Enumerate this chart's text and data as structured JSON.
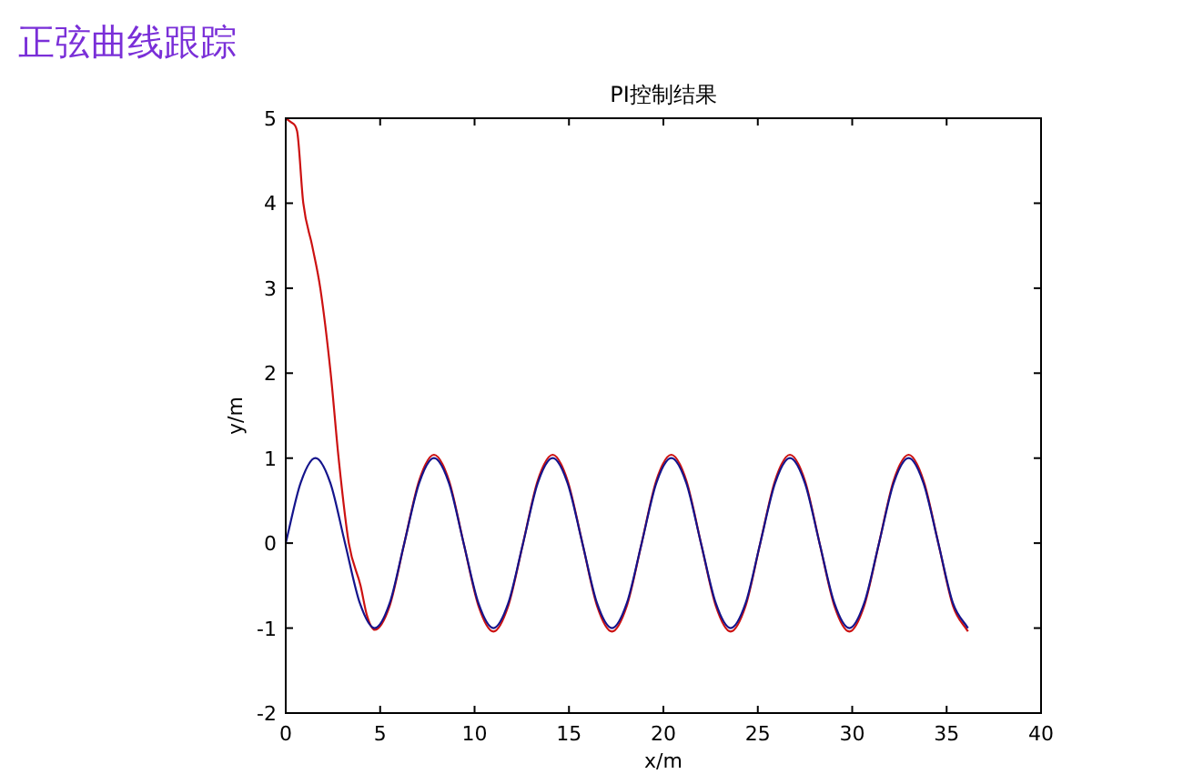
{
  "chart_data": {
    "type": "line",
    "title": "PI控制结果",
    "xlabel": "x/m",
    "ylabel": "y/m",
    "annotations": [
      "正弦曲线跟踪"
    ],
    "xlim": [
      0,
      40
    ],
    "xticks": [
      0,
      5,
      10,
      15,
      20,
      25,
      30,
      35,
      40
    ],
    "ylim": [
      -2,
      5
    ],
    "yticks": [
      -2,
      -1,
      0,
      1,
      2,
      3,
      4,
      5
    ],
    "grid": false,
    "marker": "none",
    "line_style": "solid",
    "series": [
      {
        "color": "#cc1111",
        "x": [
          0,
          0.3,
          0.6,
          0.93,
          1.4,
          1.83,
          2.38,
          2.8,
          3.34,
          3.96,
          4.3,
          4.71,
          5.5,
          6.28,
          7.07,
          7.85,
          8.64,
          9.42,
          10.21,
          11,
          11.78,
          12.57,
          13.35,
          14.14,
          14.92,
          15.71,
          16.49,
          17.28,
          18.06,
          18.85,
          19.63,
          20.42,
          21.21,
          21.99,
          22.78,
          23.56,
          24.35,
          25.13,
          25.92,
          26.7,
          27.49,
          28.27,
          29.06,
          29.85,
          30.63,
          31.42,
          32.2,
          32.99,
          33.77,
          34.56,
          35.34,
          36.13
        ],
        "values": [
          5,
          4.95,
          4.85,
          4,
          3.5,
          3,
          2,
          1,
          0,
          -0.5,
          -0.85,
          -1.02,
          -0.74,
          0,
          0.74,
          1.04,
          0.74,
          0,
          -0.74,
          -1.04,
          -0.74,
          0,
          0.74,
          1.04,
          0.74,
          0,
          -0.74,
          -1.04,
          -0.74,
          0,
          0.74,
          1.04,
          0.74,
          0,
          -0.74,
          -1.04,
          -0.74,
          0,
          0.74,
          1.04,
          0.74,
          0,
          -0.74,
          -1.04,
          -0.74,
          0,
          0.74,
          1.04,
          0.74,
          0,
          -0.74,
          -1.04
        ]
      },
      {
        "color": "#14148c",
        "x": [
          0,
          0.79,
          1.57,
          2.36,
          3.14,
          3.93,
          4.71,
          5.5,
          6.28,
          7.07,
          7.85,
          8.64,
          9.42,
          10.21,
          11,
          11.78,
          12.57,
          13.35,
          14.14,
          14.92,
          15.71,
          16.49,
          17.28,
          18.06,
          18.85,
          19.63,
          20.42,
          21.21,
          21.99,
          22.78,
          23.56,
          24.35,
          25.13,
          25.92,
          26.7,
          27.49,
          28.27,
          29.06,
          29.85,
          30.63,
          31.42,
          32.2,
          32.99,
          33.77,
          34.56,
          35.34,
          36.13
        ],
        "values": [
          0,
          0.71,
          1,
          0.71,
          0,
          -0.71,
          -1,
          -0.71,
          0,
          0.71,
          1,
          0.71,
          0,
          -0.71,
          -1,
          -0.71,
          0,
          0.71,
          1,
          0.71,
          0,
          -0.71,
          -1,
          -0.71,
          0,
          0.71,
          1,
          0.71,
          0,
          -0.71,
          -1,
          -0.71,
          0,
          0.71,
          1,
          0.71,
          0,
          -0.71,
          -1,
          -0.71,
          0,
          0.71,
          1,
          0.71,
          0,
          -0.71,
          -1
        ]
      }
    ]
  }
}
